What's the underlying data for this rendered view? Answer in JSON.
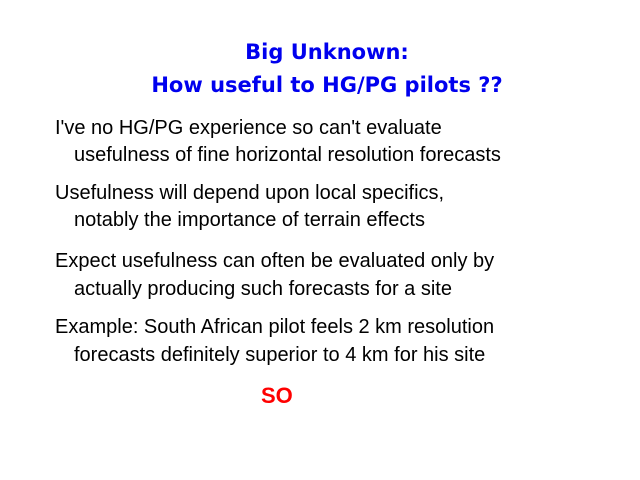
{
  "title": {
    "line1": "Big Unknown:",
    "line2": "How useful to HG/PG pilots ??",
    "color": "#0000ee"
  },
  "bullets": [
    {
      "line1": "I've no HG/PG experience so can't evaluate",
      "line2": "usefulness of fine horizontal resolution forecasts"
    },
    {
      "line1": "Usefulness will depend upon local specifics,",
      "line2": "notably the importance of terrain effects"
    },
    {
      "line1": "Expect usefulness can often be evaluated only by",
      "line2": "actually producing such forecasts for a site"
    },
    {
      "line1": "Example: South African pilot feels 2 km resolution",
      "line2": "forecasts definitely superior to 4 km for his site"
    }
  ],
  "conclusion": {
    "text": "SO",
    "color": "#ff0000"
  }
}
